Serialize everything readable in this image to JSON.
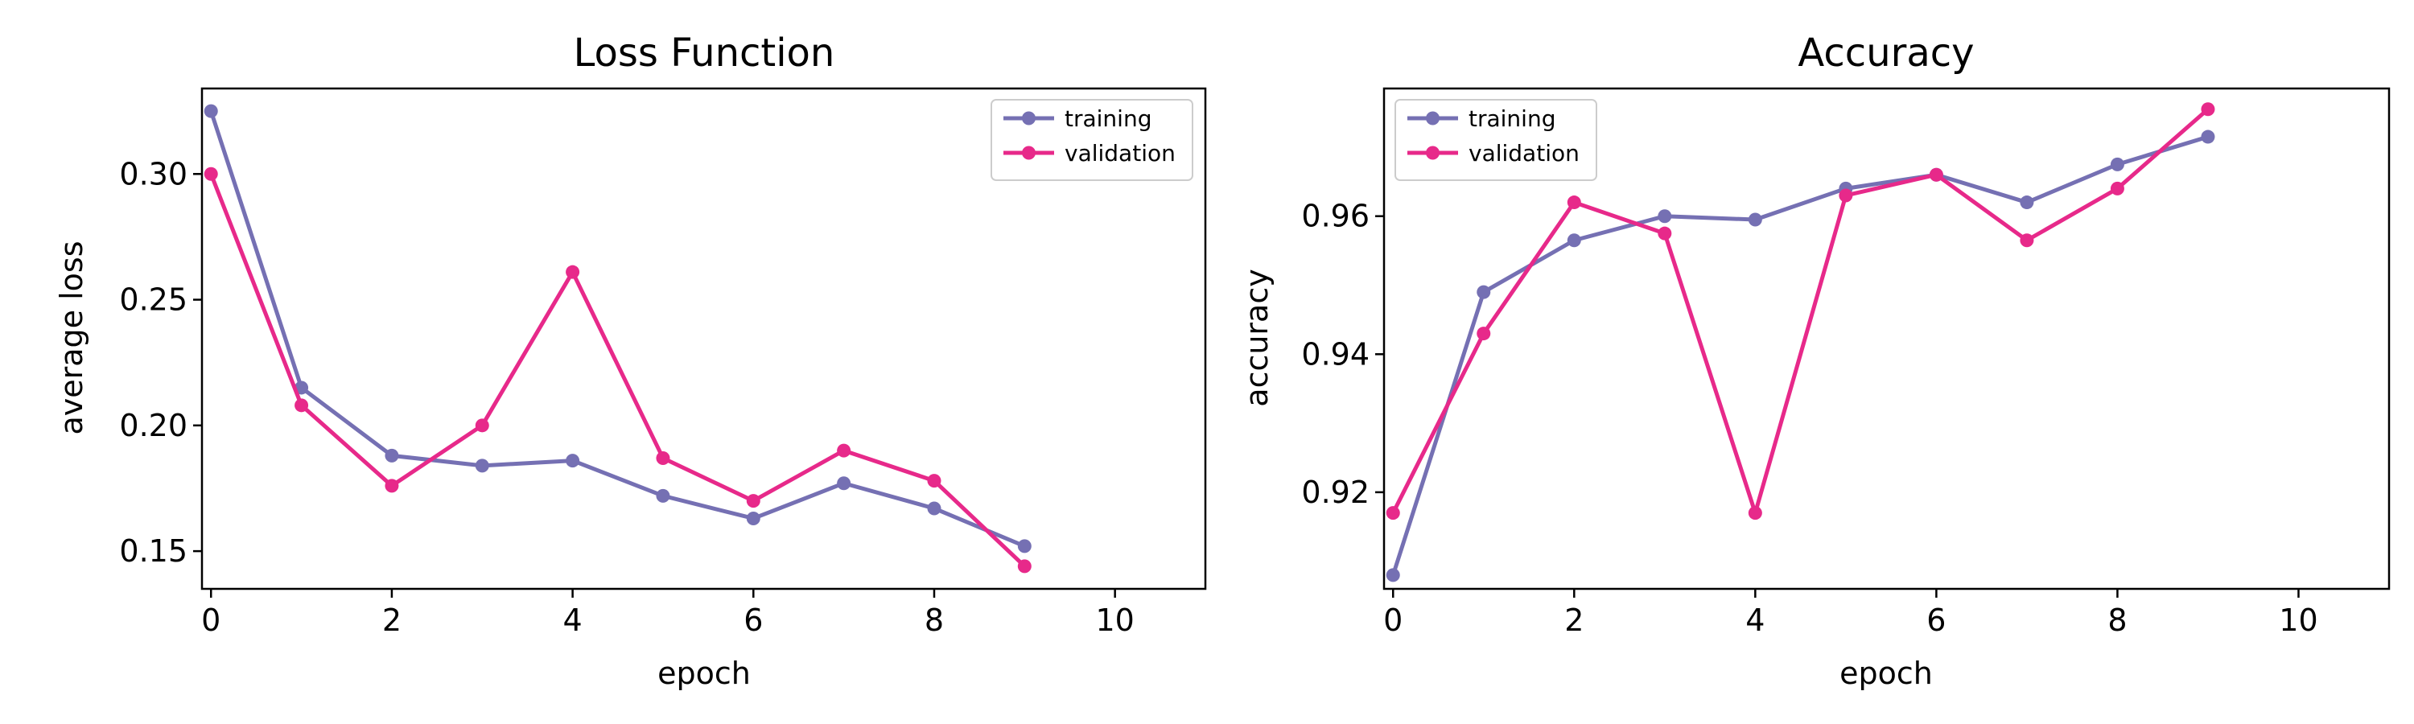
{
  "chart_data": [
    {
      "type": "line",
      "title": "Loss Function",
      "xlabel": "epoch",
      "ylabel": "average loss",
      "x": [
        0,
        1,
        2,
        3,
        4,
        5,
        6,
        7,
        8,
        9
      ],
      "xlim": [
        -0.1,
        11
      ],
      "ylim": [
        0.135,
        0.334
      ],
      "xticks": [
        0,
        2,
        4,
        6,
        8,
        10
      ],
      "yticks": [
        0.15,
        0.2,
        0.25,
        0.3
      ],
      "ytick_labels": [
        "0.15",
        "0.20",
        "0.25",
        "0.30"
      ],
      "legend": "top-right",
      "grid": false,
      "series": [
        {
          "name": "training",
          "color": "#7570b3",
          "values": [
            0.325,
            0.215,
            0.188,
            0.184,
            0.186,
            0.172,
            0.163,
            0.177,
            0.167,
            0.152
          ]
        },
        {
          "name": "validation",
          "color": "#e7298a",
          "values": [
            0.3,
            0.208,
            0.176,
            0.2,
            0.261,
            0.187,
            0.17,
            0.19,
            0.178,
            0.144
          ]
        }
      ]
    },
    {
      "type": "line",
      "title": "Accuracy",
      "xlabel": "epoch",
      "ylabel": "accuracy",
      "x": [
        0,
        1,
        2,
        3,
        4,
        5,
        6,
        7,
        8,
        9
      ],
      "xlim": [
        -0.1,
        11
      ],
      "ylim": [
        0.906,
        0.9785
      ],
      "xticks": [
        0,
        2,
        4,
        6,
        8,
        10
      ],
      "yticks": [
        0.92,
        0.94,
        0.96
      ],
      "ytick_labels": [
        "0.92",
        "0.94",
        "0.96"
      ],
      "legend": "top-left",
      "grid": false,
      "series": [
        {
          "name": "training",
          "color": "#7570b3",
          "values": [
            0.908,
            0.949,
            0.9565,
            0.96,
            0.9595,
            0.964,
            0.966,
            0.962,
            0.9675,
            0.9715
          ]
        },
        {
          "name": "validation",
          "color": "#e7298a",
          "values": [
            0.917,
            0.943,
            0.962,
            0.9575,
            0.917,
            0.963,
            0.966,
            0.9565,
            0.964,
            0.9755
          ]
        }
      ]
    }
  ]
}
